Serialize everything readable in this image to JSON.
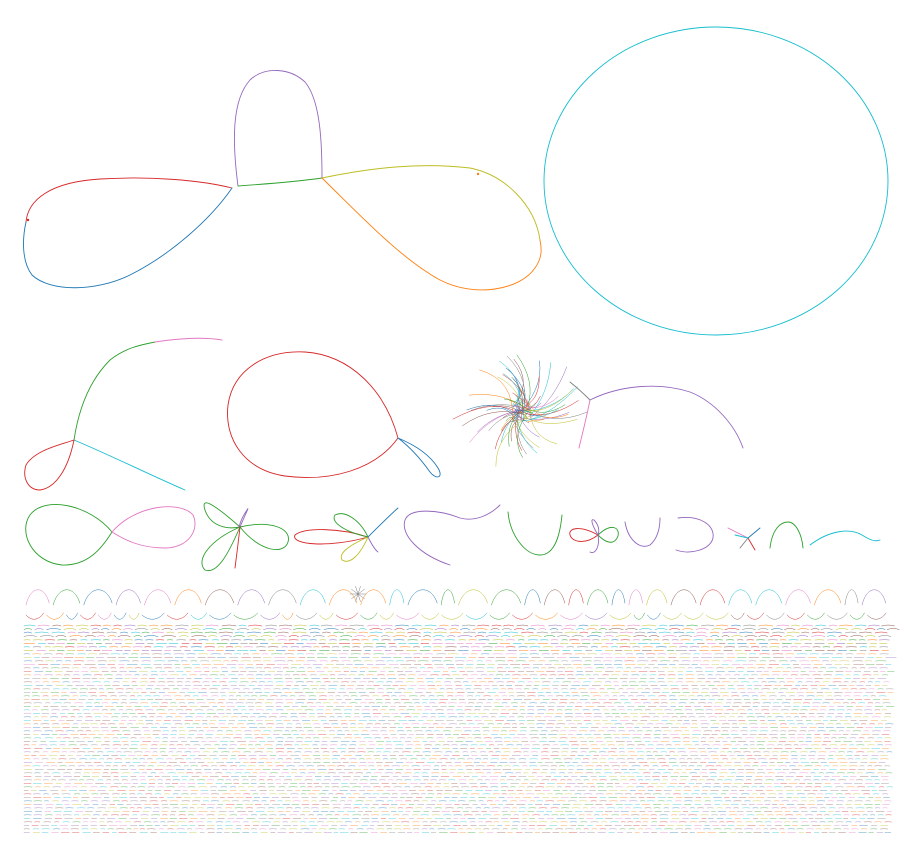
{
  "colors": {
    "background": "#ffffff",
    "palette": [
      "#1f77b4",
      "#ff7f0e",
      "#2ca02c",
      "#d62728",
      "#9467bd",
      "#8c564b",
      "#e377c2",
      "#7f7f7f",
      "#bcbd22",
      "#17becf"
    ]
  },
  "graph_layout": {
    "kind": "connected components of a graph drawn with curved edges, largest first",
    "components_large": 2,
    "components_medium": 5,
    "components_small_row": 12,
    "tiny_component_rows": 60
  }
}
